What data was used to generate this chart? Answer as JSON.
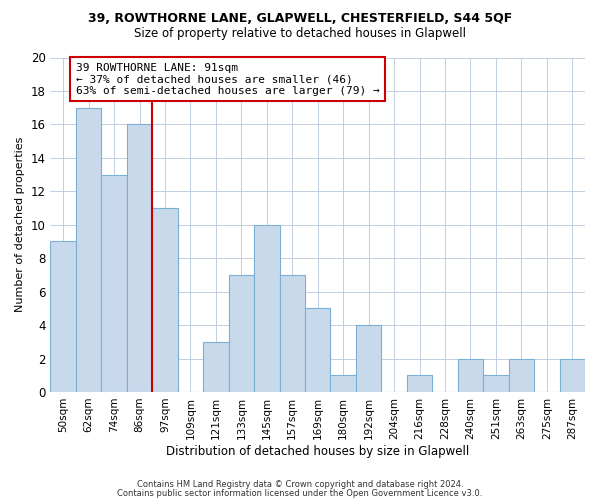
{
  "title1": "39, ROWTHORNE LANE, GLAPWELL, CHESTERFIELD, S44 5QF",
  "title2": "Size of property relative to detached houses in Glapwell",
  "xlabel": "Distribution of detached houses by size in Glapwell",
  "ylabel": "Number of detached properties",
  "footnote1": "Contains HM Land Registry data © Crown copyright and database right 2024.",
  "footnote2": "Contains public sector information licensed under the Open Government Licence v3.0.",
  "bar_labels": [
    "50sqm",
    "62sqm",
    "74sqm",
    "86sqm",
    "97sqm",
    "109sqm",
    "121sqm",
    "133sqm",
    "145sqm",
    "157sqm",
    "169sqm",
    "180sqm",
    "192sqm",
    "204sqm",
    "216sqm",
    "228sqm",
    "240sqm",
    "251sqm",
    "263sqm",
    "275sqm",
    "287sqm"
  ],
  "bar_heights": [
    9,
    17,
    13,
    16,
    11,
    0,
    3,
    7,
    10,
    7,
    5,
    1,
    4,
    0,
    1,
    0,
    2,
    1,
    2,
    0,
    2
  ],
  "bar_color": "#c9d9ec",
  "bar_edge_color": "#7bafd4",
  "ylim": [
    0,
    20
  ],
  "yticks": [
    0,
    2,
    4,
    6,
    8,
    10,
    12,
    14,
    16,
    18,
    20
  ],
  "vline_x": 3.5,
  "vline_color": "#cc0000",
  "annotation_title": "39 ROWTHORNE LANE: 91sqm",
  "annotation_line1": "← 37% of detached houses are smaller (46)",
  "annotation_line2": "63% of semi-detached houses are larger (79) →",
  "background_color": "#ffffff",
  "grid_color": "#c0cfe0"
}
